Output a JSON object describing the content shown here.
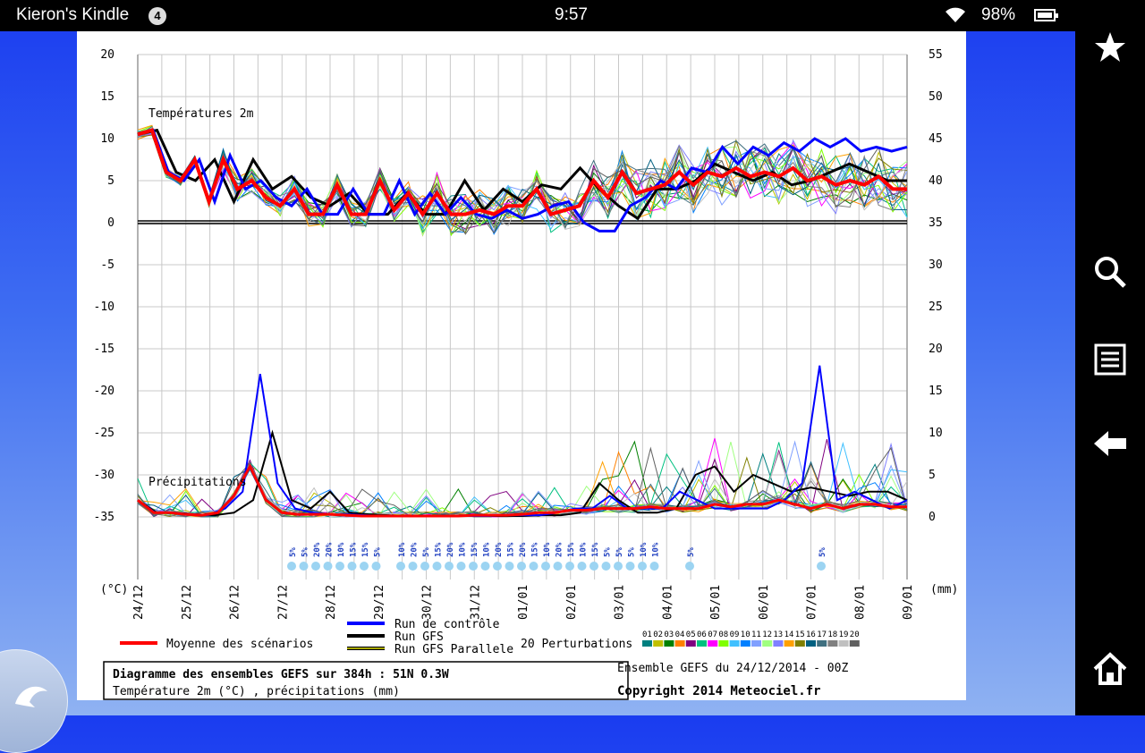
{
  "statusbar": {
    "device_name": "Kieron's Kindle",
    "notification_count": "4",
    "time": "9:57",
    "battery": "98%"
  },
  "navbar": {
    "icons": [
      "star-icon",
      "search-icon",
      "menu-icon",
      "back-icon",
      "home-icon"
    ]
  },
  "chart_data": {
    "type": "line",
    "title": "Diagramme des ensembles GEFS sur 384h : 51N 0.3W",
    "subtitle": "Température 2m (°C) , précipitations (mm)",
    "run_info": "Ensemble GEFS du 24/12/2014 - 00Z",
    "copyright": "Copyright 2014 Meteociel.fr",
    "panel_temp_label": "Températures 2m",
    "panel_precip_label": "Précipitations",
    "y_left_unit": "(°C)",
    "y_right_unit": "(mm)",
    "y_left_ticks": [
      "20",
      "15",
      "10",
      "5",
      "0",
      "-5",
      "-10",
      "-15",
      "-20",
      "-25",
      "-30",
      "-35"
    ],
    "y_right_ticks": [
      "55",
      "50",
      "45",
      "40",
      "35",
      "30",
      "25",
      "20",
      "15",
      "10",
      "5",
      "0"
    ],
    "x_ticks": [
      "24/12",
      "25/12",
      "26/12",
      "27/12",
      "28/12",
      "29/12",
      "30/12",
      "31/12",
      "01/01",
      "02/01",
      "03/01",
      "04/01",
      "05/01",
      "06/01",
      "07/01",
      "08/01",
      "09/01"
    ],
    "ylim_left": [
      -35,
      20
    ],
    "ylim_right": [
      0,
      55
    ],
    "grid": true,
    "legend": {
      "mean": "Moyenne des scénarios",
      "control": "Run de contrôle",
      "gfs": "Run GFS",
      "parallel": "Run GFS Parallele",
      "perturbations": "20 Perturbations",
      "member_ids": [
        "01",
        "02",
        "03",
        "04",
        "05",
        "06",
        "07",
        "08",
        "09",
        "10",
        "11",
        "12",
        "13",
        "14",
        "15",
        "16",
        "17",
        "18",
        "19",
        "20"
      ],
      "member_colors": [
        "#008080",
        "#c0c000",
        "#008000",
        "#ff8000",
        "#800080",
        "#00c080",
        "#ff00ff",
        "#80ff00",
        "#40c0ff",
        "#0080ff",
        "#80a0ff",
        "#a0ff80",
        "#8080ff",
        "#ffa000",
        "#808000",
        "#006080",
        "#407080",
        "#808080",
        "#c0c0c0",
        "#606060"
      ]
    },
    "series": [
      {
        "name": "Moyenne des scénarios",
        "color": "#ff0000",
        "temp": [
          10.5,
          11,
          6,
          5,
          7.5,
          2.5,
          7.5,
          4,
          5,
          3,
          2,
          4,
          1,
          1,
          4.5,
          1,
          1,
          5,
          1.5,
          3.5,
          1,
          3.5,
          1,
          1,
          1.5,
          1,
          2,
          2,
          4,
          1,
          1.5,
          2,
          5,
          3,
          6,
          3.5,
          4,
          4.5,
          6,
          4.5,
          6,
          5.5,
          6.5,
          5.5,
          6,
          5.5,
          6.5,
          5,
          5.5,
          4.5,
          5,
          4.5,
          5.5,
          4,
          4
        ],
        "precip": [
          2,
          0.5,
          0.5,
          0.3,
          0.2,
          0.5,
          2.5,
          6,
          2,
          0.5,
          0.3,
          0.3,
          0.3,
          0.2,
          0.1,
          0.1,
          0.1,
          0.1,
          0.1,
          0.1,
          0.1,
          0.2,
          0.2,
          0.2,
          0.3,
          0.5,
          0.5,
          0.8,
          0.8,
          1,
          1,
          1,
          1.2,
          1,
          1,
          1,
          1.5,
          1.2,
          1.5,
          1.5,
          2,
          1.5,
          1,
          1.5,
          1,
          1.5,
          1.5,
          1.2,
          1.2
        ]
      },
      {
        "name": "Run de contrôle",
        "color": "#0000ff",
        "temp": [
          10.5,
          11,
          6,
          5,
          7.5,
          2.5,
          8,
          4,
          5,
          3,
          2,
          4,
          1,
          1,
          4,
          1,
          1,
          5,
          1,
          3.5,
          1,
          3,
          1,
          0.5,
          1.5,
          0.5,
          1,
          2,
          2.5,
          0,
          -1,
          -1,
          2,
          3,
          5,
          4,
          6.5,
          6,
          9,
          7,
          9,
          8,
          9.5,
          8.5,
          10,
          9,
          10,
          8.5,
          9,
          8.5,
          9
        ],
        "precip": [
          2,
          0.5,
          0.5,
          0.3,
          0.2,
          1,
          3,
          17,
          4,
          1,
          0.5,
          0.3,
          0.3,
          0.2,
          0.1,
          0.1,
          0.1,
          0.1,
          0.1,
          0.1,
          0.1,
          0.2,
          0.2,
          0.2,
          0.5,
          1,
          1,
          2.5,
          1,
          1,
          1,
          3,
          2,
          1,
          1,
          1,
          1,
          2,
          4,
          18,
          2,
          3,
          2,
          1,
          2
        ]
      },
      {
        "name": "Run GFS",
        "color": "#000000",
        "temp": [
          10.5,
          11,
          6,
          5,
          7.5,
          2.5,
          7.5,
          4,
          5.5,
          3,
          2,
          3.5,
          1,
          1,
          3.5,
          1,
          1,
          5,
          1.5,
          4,
          2.5,
          4.5,
          4,
          6.5,
          4,
          2,
          0.5,
          4,
          4,
          5,
          7,
          6,
          5,
          6,
          4.5,
          5,
          6,
          7,
          6,
          5,
          5
        ],
        "precip": [
          2,
          0.5,
          0.5,
          0.3,
          0.2,
          0.5,
          2,
          10,
          2,
          1,
          3,
          0.5,
          0.3,
          0.2,
          0.1,
          0.1,
          0.1,
          0.1,
          0.1,
          0.1,
          0.1,
          0.2,
          0.2,
          0.5,
          4,
          2,
          0.5,
          0.5,
          1,
          5,
          6,
          3,
          5,
          4,
          3,
          3.5,
          3,
          2.5,
          3,
          3,
          2
        ]
      }
    ],
    "snow_probabilities": [
      "5%",
      "5%",
      "20%",
      "20%",
      "10%",
      "15%",
      "15%",
      "5%",
      "10%",
      "20%",
      "5%",
      "15%",
      "20%",
      "10%",
      "15%",
      "10%",
      "20%",
      "15%",
      "20%",
      "15%",
      "10%",
      "20%",
      "15%",
      "10%",
      "15%",
      "5%",
      "5%",
      "5%",
      "10%",
      "10%",
      "5%",
      "5%"
    ]
  }
}
